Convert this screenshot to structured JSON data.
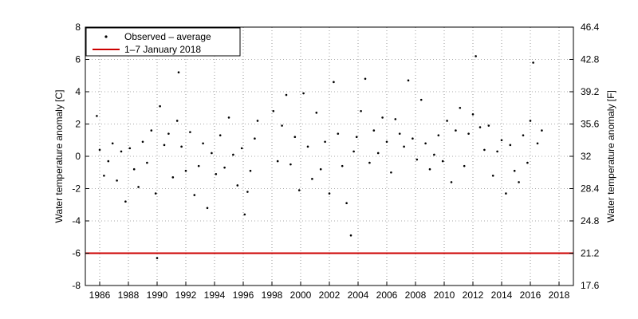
{
  "chart_data": {
    "type": "scatter",
    "title": "",
    "xlabel": "",
    "ylabel": "Water temperature anomaly [C]",
    "ylabel_right": "Water temperature anomaly [F]",
    "xlim": [
      1985,
      2019
    ],
    "ylim": [
      -8,
      8
    ],
    "x_ticks": [
      1986,
      1988,
      1990,
      1992,
      1994,
      1996,
      1998,
      2000,
      2002,
      2004,
      2006,
      2008,
      2010,
      2012,
      2014,
      2016,
      2018
    ],
    "y_ticks": [
      -8,
      -6,
      -4,
      -2,
      0,
      2,
      4,
      6,
      8
    ],
    "y_right_ticks": [
      "17.6",
      "21.2",
      "24.8",
      "28.4",
      "32",
      "35.6",
      "39.2",
      "42.8",
      "46.4"
    ],
    "grid": true,
    "legend_position": "top-left",
    "series": [
      {
        "name": "Observed – average",
        "style": "dots",
        "color": "#000000",
        "x": [
          1985.8,
          1986.0,
          1986.3,
          1986.6,
          1986.9,
          1987.2,
          1987.5,
          1987.8,
          1988.1,
          1988.4,
          1988.7,
          1989.0,
          1989.3,
          1989.6,
          1989.9,
          1990.0,
          1990.2,
          1990.5,
          1990.8,
          1991.1,
          1991.4,
          1991.5,
          1991.7,
          1992.0,
          1992.3,
          1992.6,
          1992.9,
          1993.2,
          1993.5,
          1993.8,
          1994.1,
          1994.4,
          1994.7,
          1995.0,
          1995.3,
          1995.6,
          1995.9,
          1996.1,
          1996.3,
          1996.5,
          1996.8,
          1997.0,
          1998.1,
          1998.4,
          1998.7,
          1999.0,
          1999.3,
          1999.6,
          1999.9,
          2000.2,
          2000.5,
          2000.8,
          2001.1,
          2001.4,
          2001.7,
          2002.0,
          2002.3,
          2002.6,
          2002.9,
          2003.2,
          2003.5,
          2003.7,
          2003.9,
          2004.2,
          2004.5,
          2004.8,
          2005.1,
          2005.4,
          2005.7,
          2006.0,
          2006.3,
          2006.6,
          2006.9,
          2007.2,
          2007.5,
          2007.8,
          2008.1,
          2008.4,
          2008.7,
          2009.0,
          2009.3,
          2009.6,
          2009.9,
          2010.2,
          2010.5,
          2010.8,
          2011.1,
          2011.4,
          2011.7,
          2012.0,
          2012.2,
          2012.5,
          2012.8,
          2013.1,
          2013.4,
          2013.7,
          2014.0,
          2014.3,
          2014.6,
          2014.9,
          2015.2,
          2015.5,
          2015.8,
          2016.0,
          2016.2,
          2016.5,
          2016.8
        ],
        "y": [
          2.5,
          0.4,
          -1.2,
          -0.3,
          0.8,
          -1.5,
          0.3,
          -2.8,
          0.5,
          -0.8,
          -1.9,
          0.9,
          -0.4,
          1.6,
          -2.3,
          -6.3,
          3.1,
          0.7,
          1.4,
          -1.3,
          2.2,
          5.2,
          0.6,
          -0.9,
          1.5,
          -2.4,
          -0.6,
          0.8,
          -3.2,
          0.2,
          -1.1,
          1.3,
          -0.7,
          2.4,
          0.1,
          -1.8,
          0.5,
          -3.6,
          -2.2,
          -0.9,
          1.1,
          2.2,
          2.8,
          -0.3,
          1.9,
          3.8,
          -0.5,
          1.2,
          -2.1,
          3.9,
          0.6,
          -1.4,
          2.7,
          -0.8,
          0.9,
          -2.3,
          4.6,
          1.4,
          -0.6,
          -2.9,
          -4.9,
          0.3,
          1.2,
          2.8,
          4.8,
          -0.4,
          1.6,
          0.2,
          2.4,
          0.9,
          -1.0,
          2.3,
          1.4,
          0.6,
          4.7,
          1.1,
          -0.2,
          3.5,
          0.8,
          -0.8,
          0.1,
          1.3,
          -0.3,
          2.2,
          -1.6,
          1.6,
          3.0,
          -0.6,
          1.4,
          2.6,
          6.2,
          1.8,
          0.4,
          1.9,
          -1.2,
          0.3,
          1.0,
          -2.3,
          0.7,
          -0.9,
          -1.6,
          1.3,
          -0.4,
          2.2,
          5.8,
          0.8,
          1.6
        ]
      },
      {
        "name": "1–7 January 2018",
        "style": "line",
        "color": "#cc0000",
        "y_constant": -6
      }
    ]
  }
}
